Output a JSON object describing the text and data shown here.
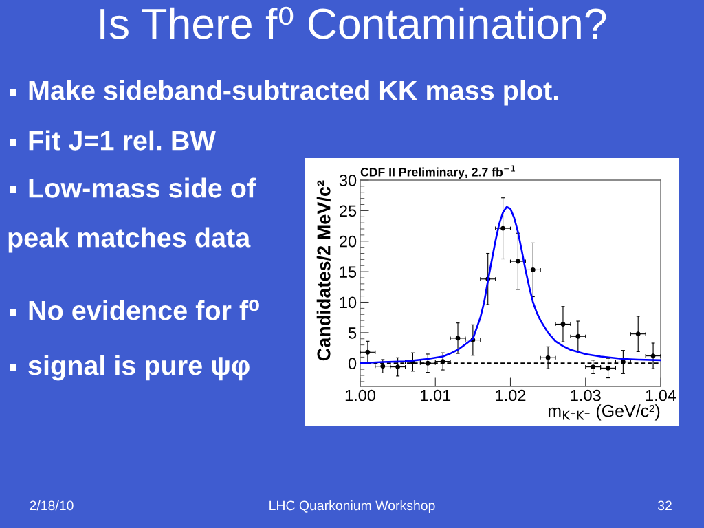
{
  "chart_data": {
    "type": "scatter",
    "title": "Is There f⁰ Contamination?",
    "xlabel": "m$_{K⁺K⁻}$ (GeV/c²)",
    "ylabel": "Candidates/2 MeV/c²",
    "annotations": [
      "CDF II Preliminary, 2.7 fb$^{−1}$",
      "Make sideband-subtracted KK mass plot.",
      "Fit J=1 rel. BW",
      "Low-mass side of",
      "peak matches data",
      "No evidence for f⁰",
      "signal is pure ψφ",
      "2/18/10",
      "LHC Quarkonium Workshop",
      "32"
    ],
    "series": [
      {
        "type": "scatter",
        "color": "#000000",
        "marker": "circle",
        "x": [
          1.001,
          1.003,
          1.005,
          1.007,
          1.009,
          1.011,
          1.013,
          1.015,
          1.017,
          1.019,
          1.021,
          1.023,
          1.025,
          1.027,
          1.029,
          1.031,
          1.033,
          1.035,
          1.037,
          1.039
        ],
        "values": [
          1.8,
          -0.5,
          -0.6,
          0.2,
          0.0,
          0.3,
          4.1,
          3.8,
          13.8,
          22.1,
          16.7,
          15.3,
          0.9,
          6.4,
          4.4,
          -0.6,
          -0.8,
          0.2,
          4.8,
          1.2
        ],
        "errors": [
          1.8,
          1.1,
          1.5,
          1.5,
          1.5,
          1.4,
          2.5,
          2.5,
          4.2,
          5.0,
          4.6,
          4.4,
          1.8,
          2.9,
          2.5,
          1.1,
          1.6,
          1.9,
          2.9,
          2.1
        ],
        "xerrors": [
          0.001,
          0.001,
          0.001,
          0.001,
          0.001,
          0.001,
          0.001,
          0.001,
          0.001,
          0.001,
          0.001,
          0.001,
          0.001,
          0.001,
          0.001,
          0.001,
          0.001,
          0.001,
          0.001,
          0.001
        ]
      },
      {
        "type": "line",
        "color": "#0000ff",
        "line_style": "solid",
        "x": [
          1.0,
          1.003,
          1.006,
          1.009,
          1.011,
          1.012,
          1.013,
          1.014,
          1.015,
          1.016,
          1.0165,
          1.017,
          1.0175,
          1.018,
          1.0185,
          1.019,
          1.0195,
          1.02,
          1.0205,
          1.021,
          1.0215,
          1.022,
          1.0225,
          1.023,
          1.0235,
          1.024,
          1.025,
          1.026,
          1.027,
          1.028,
          1.03,
          1.032,
          1.035,
          1.037,
          1.04
        ],
        "values": [
          0.0,
          0.2,
          0.3,
          0.7,
          1.1,
          1.6,
          2.2,
          3.1,
          4.0,
          7.5,
          10.0,
          13.5,
          16.8,
          20.0,
          22.8,
          24.7,
          25.6,
          25.3,
          23.8,
          21.5,
          18.5,
          15.3,
          12.5,
          10.0,
          8.3,
          7.0,
          5.0,
          3.6,
          2.8,
          2.2,
          1.5,
          1.1,
          0.7,
          0.6,
          0.5
        ]
      }
    ],
    "xlim": [
      1.0,
      1.04
    ],
    "xticks": [
      {
        "value": 1.0,
        "label": "1.00"
      },
      1.01,
      1.02,
      1.03,
      1.04
    ],
    "ylim": [
      -3.8,
      30
    ],
    "yticks": [
      {
        "value": -3,
        "label": null
      },
      {
        "value": -2,
        "label": null
      },
      {
        "value": -1,
        "label": null
      },
      0,
      {
        "value": 1,
        "label": null
      },
      {
        "value": 2,
        "label": null
      },
      {
        "value": 3,
        "label": null
      },
      {
        "value": 4,
        "label": null
      },
      5,
      {
        "value": 6,
        "label": null
      },
      {
        "value": 7,
        "label": null
      },
      {
        "value": 8,
        "label": null
      },
      {
        "value": 9,
        "label": null
      },
      10,
      {
        "value": 11,
        "label": null
      },
      {
        "value": 12,
        "label": null
      },
      {
        "value": 13,
        "label": null
      },
      {
        "value": 14,
        "label": null
      },
      15,
      {
        "value": 16,
        "label": null
      },
      {
        "value": 17,
        "label": null
      },
      {
        "value": 18,
        "label": null
      },
      {
        "value": 19,
        "label": null
      },
      20,
      {
        "value": 21,
        "label": null
      },
      {
        "value": 22,
        "label": null
      },
      {
        "value": 23,
        "label": null
      },
      {
        "value": 24,
        "label": null
      },
      25,
      {
        "value": 26,
        "label": null
      },
      {
        "value": 27,
        "label": null
      },
      {
        "value": 28,
        "label": null
      },
      {
        "value": 29,
        "label": null
      },
      30
    ],
    "ref_lines": [
      {
        "axis": "y",
        "value": 0,
        "color": "#000000",
        "line_style": "dashed"
      }
    ],
    "grid": false
  }
}
